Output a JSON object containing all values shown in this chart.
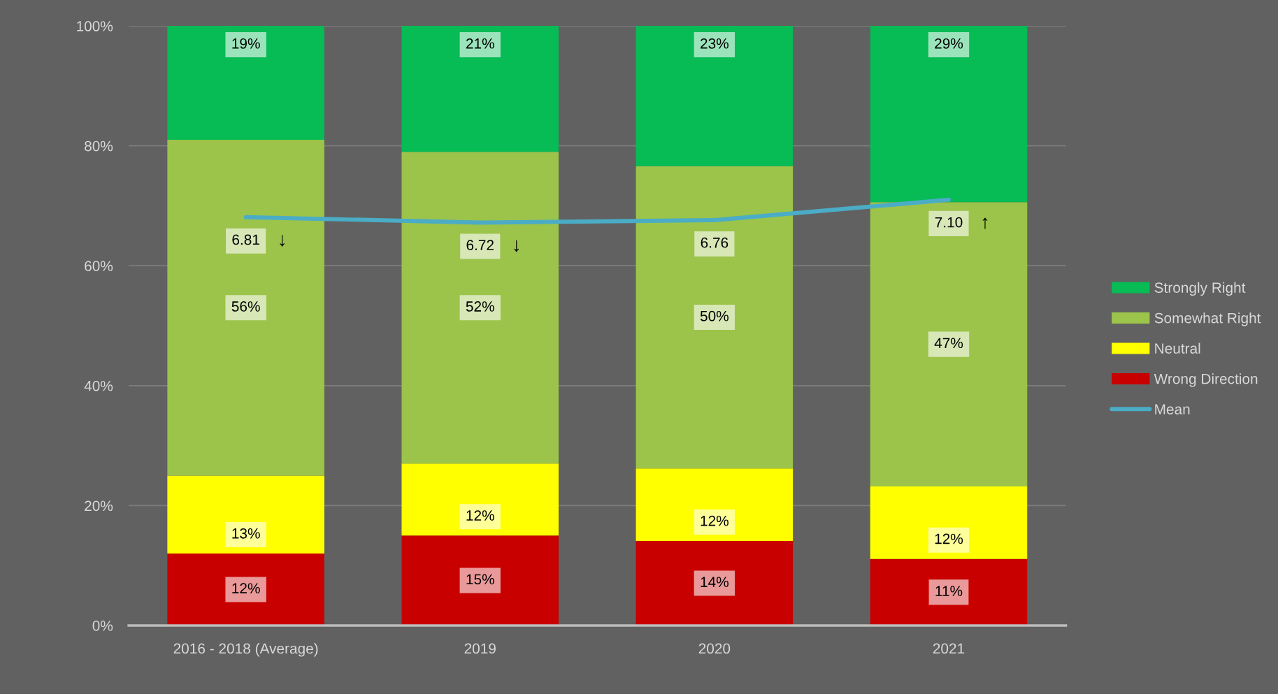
{
  "chart_data": {
    "type": "bar",
    "stacked": true,
    "categories": [
      "2016 - 2018 (Average)",
      "2019",
      "2020",
      "2021"
    ],
    "series": [
      {
        "name": "Wrong Direction",
        "color": "#c90000",
        "values": [
          12,
          15,
          14.1,
          11.1
        ],
        "value_labels": [
          "12%",
          "15%",
          "14%",
          "11%"
        ]
      },
      {
        "name": "Neutral",
        "color": "#ffff00",
        "values": [
          13,
          12,
          12.1,
          12.1
        ],
        "value_labels": [
          "13%",
          "12%",
          "12%",
          "12%"
        ]
      },
      {
        "name": "Somewhat Right",
        "color": "#9cc44a",
        "values": [
          56,
          52,
          50.4,
          47.4
        ],
        "value_labels": [
          "56%",
          "52%",
          "50%",
          "47%"
        ]
      },
      {
        "name": "Strongly Right",
        "color": "#07bb55",
        "values": [
          19,
          21,
          23.4,
          29.4
        ],
        "value_labels": [
          "19%",
          "21%",
          "23%",
          "29%"
        ]
      },
      {
        "name": "Mean",
        "type": "line",
        "axis": "y2",
        "color": "#4bacc6",
        "values": [
          6.81,
          6.72,
          6.76,
          7.1
        ],
        "value_labels": [
          "6.81 ↓",
          "6.72 ↓",
          "6.76",
          "7.10 ↑"
        ]
      }
    ],
    "ylim": [
      0,
      100
    ],
    "yticks": [
      {
        "value": 0,
        "label": "0%"
      },
      {
        "value": 20,
        "label": "20%"
      },
      {
        "value": 40,
        "label": "40%"
      },
      {
        "value": 60,
        "label": "60%"
      },
      {
        "value": 80,
        "label": "80%"
      },
      {
        "value": 100,
        "label": "100%"
      }
    ],
    "y2lim": [
      0,
      10
    ],
    "tick_labels": "xy",
    "grid": "y",
    "legend": "right",
    "line_style": "solid"
  }
}
